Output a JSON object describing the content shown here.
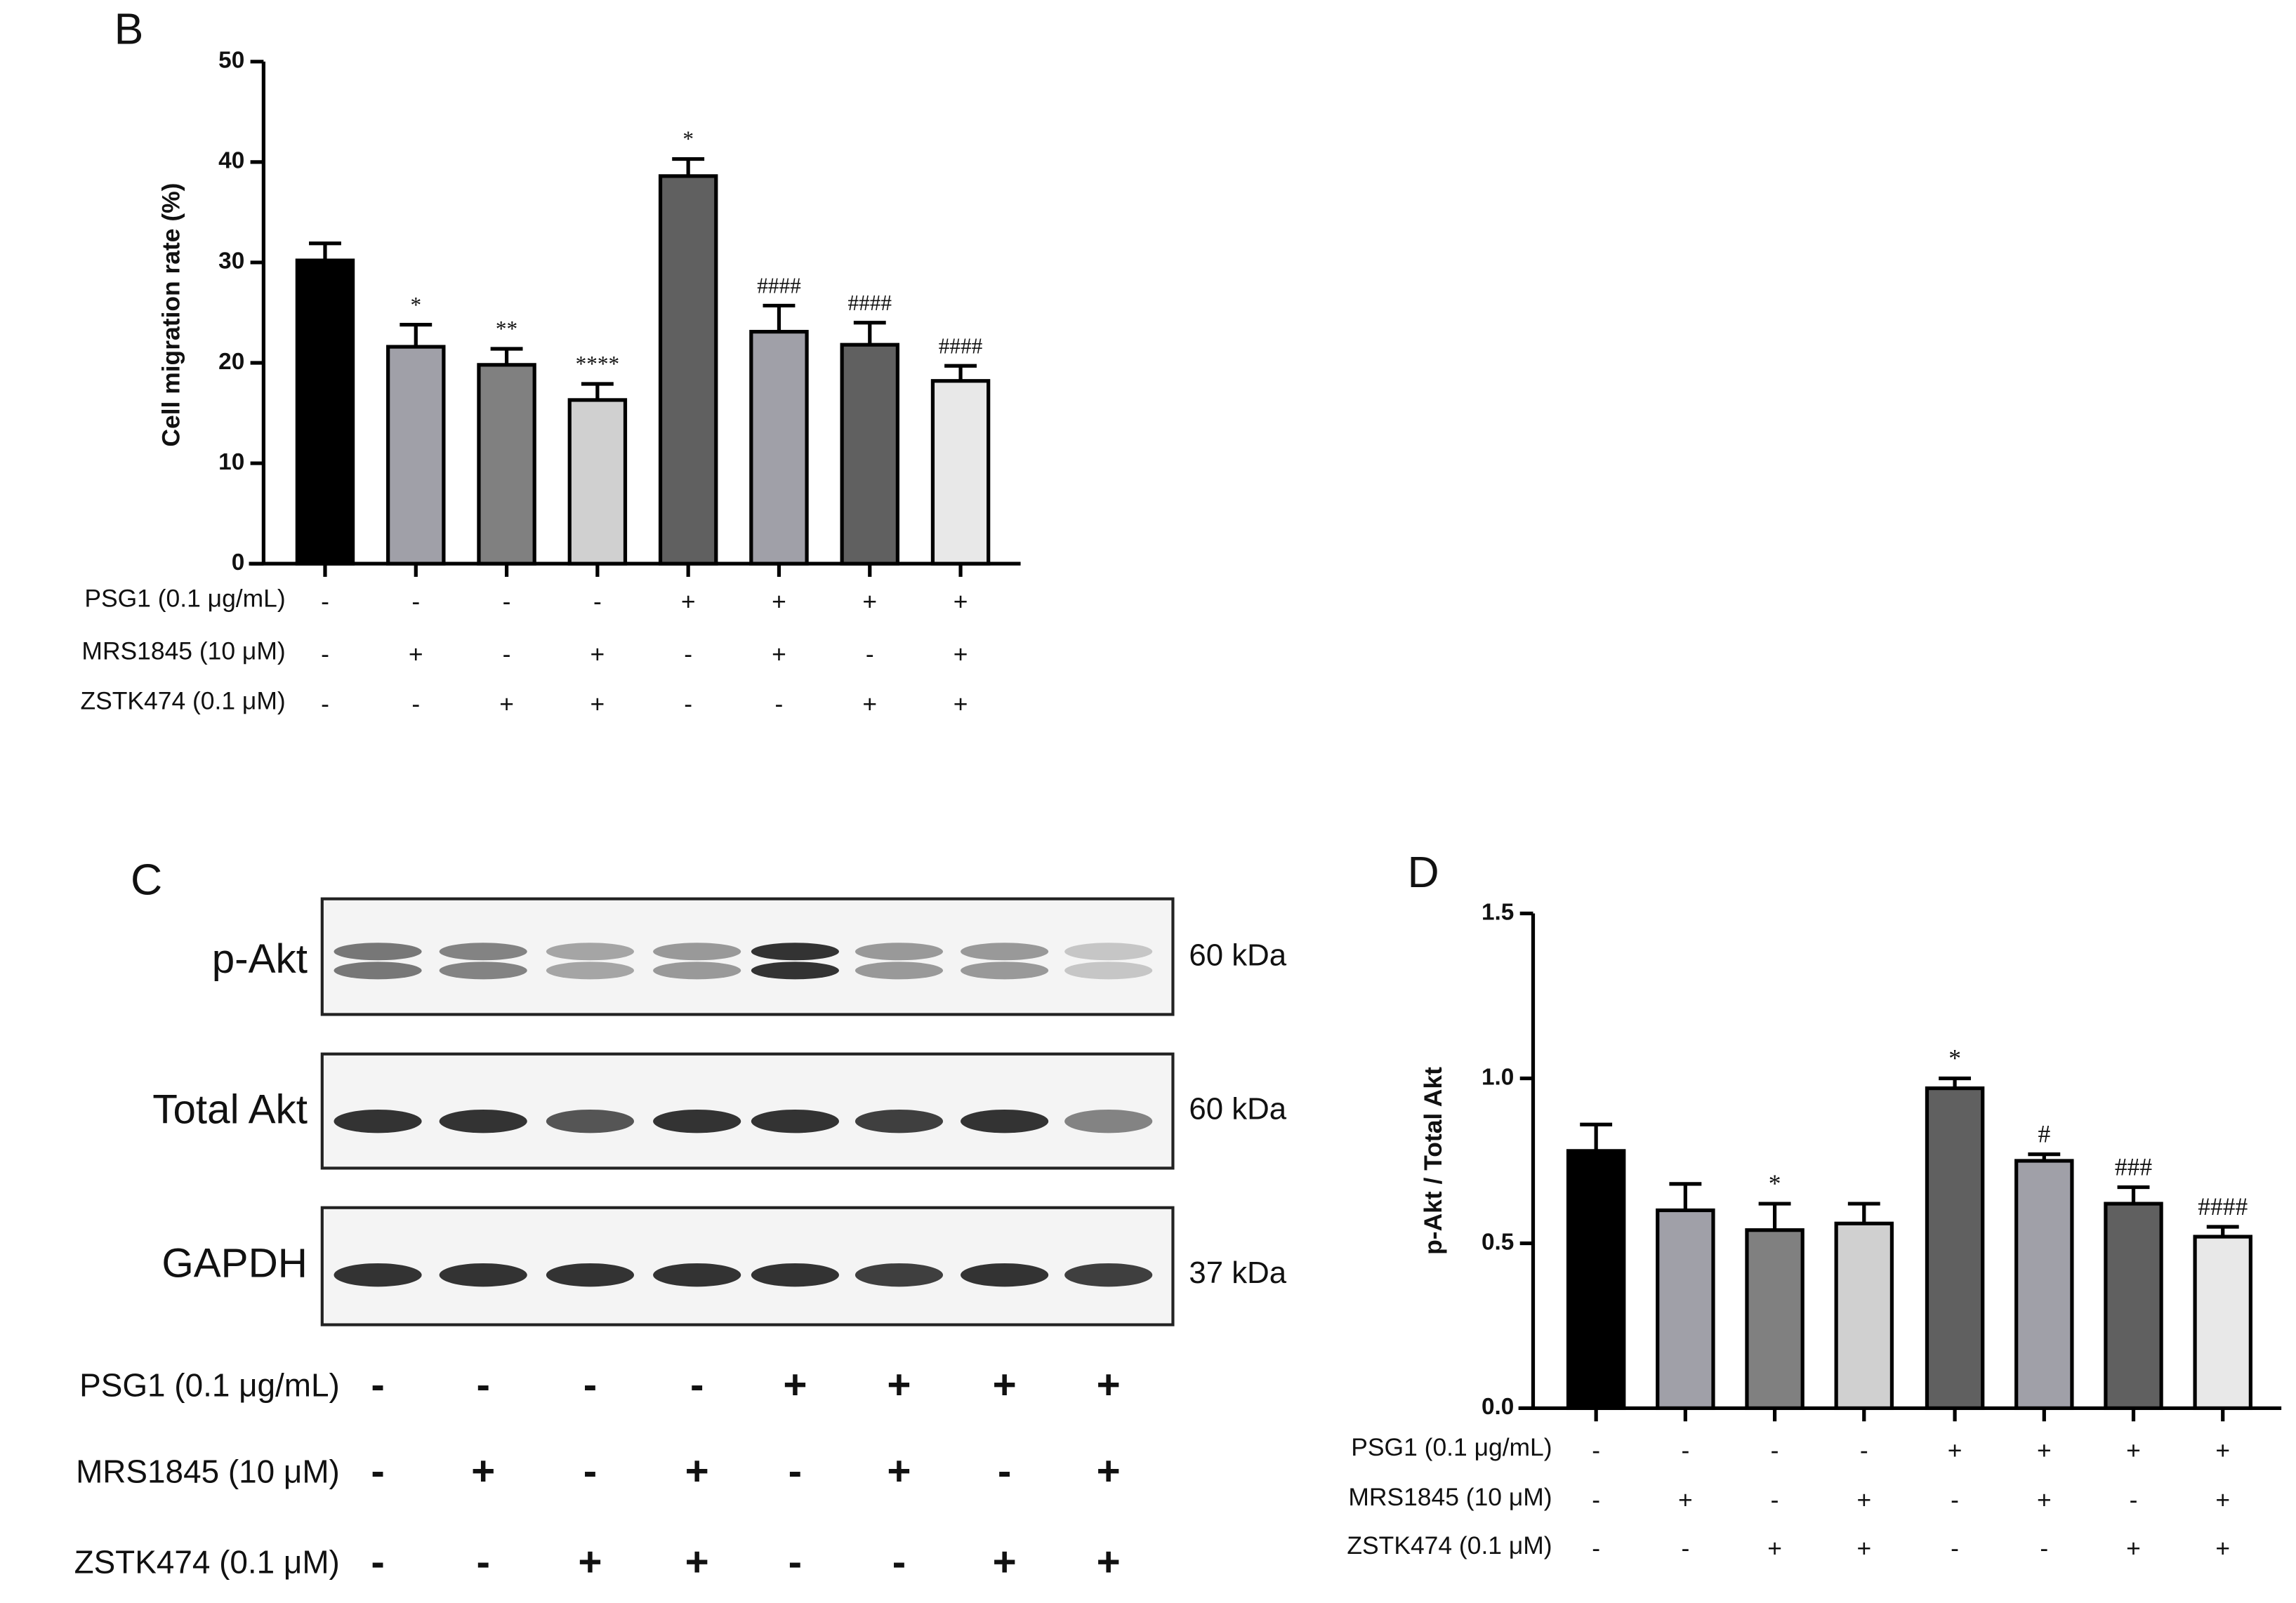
{
  "chart_data": [
    {
      "type": "bar",
      "panel_label": "B",
      "y_label": "Cell migration rate (%)",
      "ylim": [
        0,
        50
      ],
      "yticks": [
        0,
        10,
        20,
        30,
        40,
        50
      ],
      "values": [
        30.2,
        21.6,
        19.8,
        16.3,
        38.6,
        23.1,
        21.8,
        18.2
      ],
      "errors": [
        1.7,
        2.2,
        1.6,
        1.6,
        1.7,
        2.6,
        2.2,
        1.5
      ],
      "colors": [
        "#000000",
        "#a0a0a8",
        "#808080",
        "#d0d0d0",
        "#606060",
        "#a0a0a8",
        "#606060",
        "#e8e8e8"
      ],
      "annotations": [
        null,
        "*",
        "**",
        "****",
        "*",
        "####",
        "####",
        "####"
      ],
      "conditions": [
        {
          "name": "PSG1 (0.1 μg/mL)",
          "marks": [
            "-",
            "-",
            "-",
            "-",
            "+",
            "+",
            "+",
            "+"
          ]
        },
        {
          "name": "MRS1845 (10 μM)",
          "marks": [
            "-",
            "+",
            "-",
            "+",
            "-",
            "+",
            "-",
            "+"
          ]
        },
        {
          "name": "ZSTK474 (0.1 μM)",
          "marks": [
            "-",
            "-",
            "+",
            "+",
            "-",
            "-",
            "+",
            "+"
          ]
        }
      ]
    },
    {
      "type": "bar",
      "panel_label": "D",
      "y_label": "p-Akt / Total Akt",
      "ylim": [
        0,
        1.5
      ],
      "yticks": [
        {
          "value": 0,
          "label": "0.0"
        },
        0.5,
        {
          "value": 1,
          "label": "1.0"
        },
        1.5
      ],
      "values": [
        0.78,
        0.6,
        0.54,
        0.56,
        0.97,
        0.75,
        0.62,
        0.52
      ],
      "errors": [
        0.08,
        0.08,
        0.08,
        0.06,
        0.03,
        0.02,
        0.05,
        0.03
      ],
      "colors": [
        "#000000",
        "#a0a0a8",
        "#808080",
        "#d0d0d0",
        "#606060",
        "#a0a0a8",
        "#606060",
        "#e8e8e8"
      ],
      "annotations": [
        null,
        null,
        "*",
        null,
        "*",
        "#",
        "###",
        "####"
      ],
      "conditions": [
        {
          "name": "PSG1 (0.1 μg/mL)",
          "marks": [
            "-",
            "-",
            "-",
            "-",
            "+",
            "+",
            "+",
            "+"
          ]
        },
        {
          "name": "MRS1845 (10 μM)",
          "marks": [
            "-",
            "+",
            "-",
            "+",
            "-",
            "+",
            "-",
            "+"
          ]
        },
        {
          "name": "ZSTK474 (0.1 μM)",
          "marks": [
            "-",
            "-",
            "+",
            "+",
            "-",
            "-",
            "+",
            "+"
          ]
        }
      ]
    }
  ],
  "blot": {
    "panel_label": "C",
    "rows": [
      {
        "label": "p-Akt",
        "size": "60 kDa"
      },
      {
        "label": "Total Akt",
        "size": "60 kDa"
      },
      {
        "label": "GAPDH",
        "size": "37 kDa"
      }
    ],
    "conditions": [
      {
        "name": "PSG1 (0.1 μg/mL)",
        "marks": [
          "-",
          "-",
          "-",
          "-",
          "+",
          "+",
          "+",
          "+"
        ]
      },
      {
        "name": "MRS1845 (10 μM)",
        "marks": [
          "-",
          "+",
          "-",
          "+",
          "-",
          "+",
          "-",
          "+"
        ]
      },
      {
        "name": "ZSTK474 (0.1 μM)",
        "marks": [
          "-",
          "-",
          "+",
          "+",
          "-",
          "-",
          "+",
          "+"
        ]
      }
    ]
  }
}
